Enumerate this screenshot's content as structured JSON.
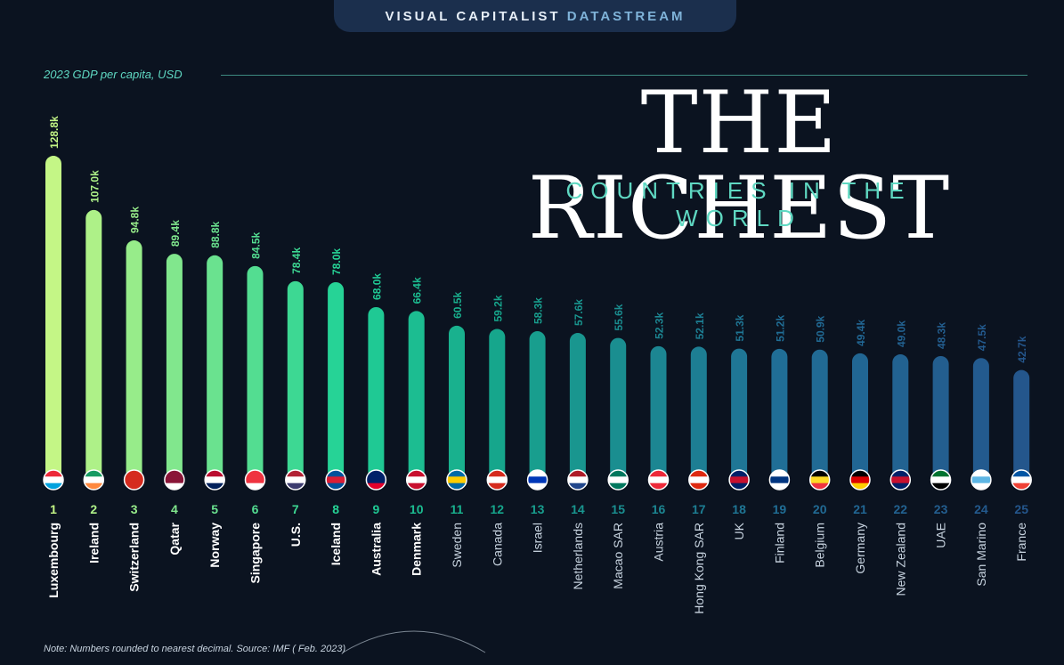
{
  "header": {
    "brand": "VISUAL CAPITALIST",
    "stream": "DATASTREAM"
  },
  "subtitle": "2023 GDP per capita, USD",
  "title": "THE RICHEST",
  "title_sub": "COUNTRIES IN THE WORLD",
  "footnote": "Note: Numbers rounded to nearest decimal. Source: IMF ( Feb. 2023)",
  "chart_data": {
    "type": "bar",
    "title": "THE RICHEST COUNTRIES IN THE WORLD",
    "ylabel": "2023 GDP per capita, USD",
    "xlabel": "",
    "ylim": [
      0,
      130
    ],
    "categories": [
      "Luxembourg",
      "Ireland",
      "Switzerland",
      "Qatar",
      "Norway",
      "Singapore",
      "U.S.",
      "Iceland",
      "Australia",
      "Denmark",
      "Sweden",
      "Canada",
      "Israel",
      "Netherlands",
      "Macao SAR",
      "Austria",
      "Hong Kong SAR",
      "UK",
      "Finland",
      "Belgium",
      "Germany",
      "New Zealand",
      "UAE",
      "San Marino",
      "France"
    ],
    "values": [
      128.8,
      107.0,
      94.8,
      89.4,
      88.8,
      84.5,
      78.4,
      78.0,
      68.0,
      66.4,
      60.5,
      59.2,
      58.3,
      57.6,
      55.6,
      52.3,
      52.1,
      51.3,
      51.2,
      50.9,
      49.4,
      49.0,
      48.3,
      47.5,
      42.7
    ],
    "value_labels": [
      "128.8k",
      "107.0k",
      "94.8k",
      "89.4k",
      "88.8k",
      "84.5k",
      "78.4k",
      "78.0k",
      "68.0k",
      "66.4k",
      "60.5k",
      "59.2k",
      "58.3k",
      "57.6k",
      "55.6k",
      "52.3k",
      "52.1k",
      "51.3k",
      "51.2k",
      "50.9k",
      "49.4k",
      "49.0k",
      "48.3k",
      "47.5k",
      "42.7k"
    ],
    "ranks": [
      "1",
      "2",
      "3",
      "4",
      "5",
      "6",
      "7",
      "8",
      "9",
      "10",
      "11",
      "12",
      "13",
      "14",
      "15",
      "16",
      "17",
      "18",
      "19",
      "20",
      "21",
      "22",
      "23",
      "24",
      "25"
    ]
  }
}
